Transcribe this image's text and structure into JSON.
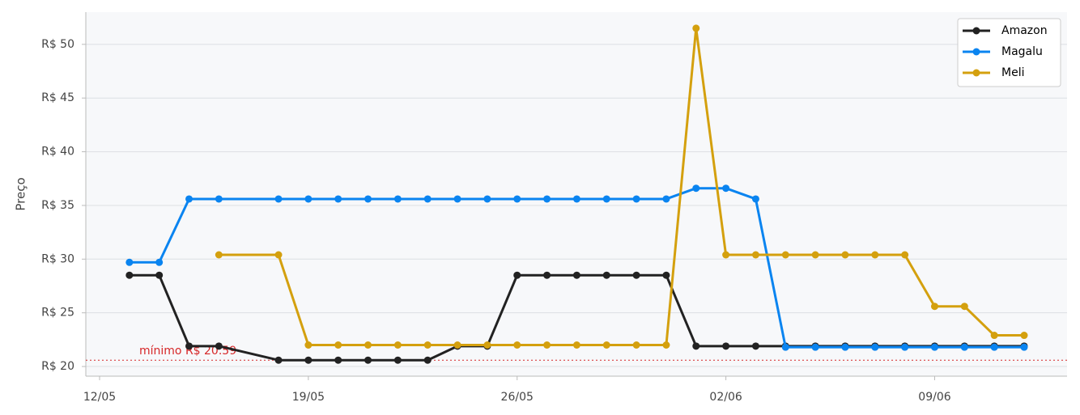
{
  "chart_data": {
    "type": "line",
    "y_label": "Preço",
    "x": [
      "13/05",
      "14/05",
      "15/05",
      "16/05",
      "18/05",
      "19/05",
      "20/05",
      "21/05",
      "22/05",
      "23/05",
      "24/05",
      "25/05",
      "26/05",
      "27/05",
      "28/05",
      "29/05",
      "30/05",
      "31/05",
      "01/06",
      "02/06",
      "03/06",
      "04/06",
      "05/06",
      "06/06",
      "07/06",
      "08/06",
      "09/06",
      "10/06",
      "11/06",
      "12/06"
    ],
    "series": [
      {
        "name": "Amazon",
        "color": "#222222",
        "values": [
          28.5,
          28.5,
          21.9,
          21.9,
          20.59,
          20.59,
          20.59,
          20.59,
          20.59,
          20.59,
          21.9,
          21.9,
          28.5,
          28.5,
          28.5,
          28.5,
          28.5,
          28.5,
          21.9,
          21.9,
          21.9,
          21.9,
          21.9,
          21.9,
          21.9,
          21.9,
          21.9,
          21.9,
          21.9,
          21.9
        ]
      },
      {
        "name": "Magalu",
        "color": "#0a84f0",
        "values": [
          29.7,
          29.7,
          35.6,
          35.6,
          35.6,
          35.6,
          35.6,
          35.6,
          35.6,
          35.6,
          35.6,
          35.6,
          35.6,
          35.6,
          35.6,
          35.6,
          35.6,
          35.6,
          36.6,
          36.6,
          35.6,
          21.8,
          21.8,
          21.8,
          21.8,
          21.8,
          21.8,
          21.8,
          21.8,
          21.8
        ]
      },
      {
        "name": "Meli",
        "color": "#d4a00e",
        "values": [
          null,
          null,
          null,
          30.4,
          30.4,
          22.0,
          22.0,
          22.0,
          22.0,
          22.0,
          22.0,
          22.0,
          22.0,
          22.0,
          22.0,
          22.0,
          22.0,
          22.0,
          51.5,
          30.4,
          30.4,
          30.4,
          30.4,
          30.4,
          30.4,
          30.4,
          25.6,
          25.6,
          22.9,
          22.9
        ]
      }
    ],
    "xticks": [
      "12/05",
      "19/05",
      "26/05",
      "02/06",
      "09/06"
    ],
    "ylim": [
      19.1,
      53.0
    ],
    "yticks": [
      {
        "value": 20,
        "label": "R$ 20"
      },
      {
        "value": 25,
        "label": "R$ 25"
      },
      {
        "value": 30,
        "label": "R$ 30"
      },
      {
        "value": 35,
        "label": "R$ 35"
      },
      {
        "value": 40,
        "label": "R$ 40"
      },
      {
        "value": 45,
        "label": "R$ 45"
      },
      {
        "value": 50,
        "label": "R$ 50"
      }
    ],
    "grid": true,
    "legend": "upper right",
    "min_line": {
      "value": 20.59,
      "label": "mínimo R$ 20.59",
      "color": "#d62728"
    }
  }
}
